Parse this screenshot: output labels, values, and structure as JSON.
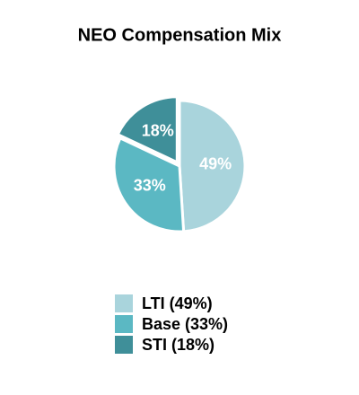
{
  "chart_data": {
    "type": "pie",
    "title": "NEO Compensation Mix",
    "categories": [
      "LTI (49%)",
      "Base (33%)",
      "STI (18%)"
    ],
    "values": [
      49,
      33,
      18
    ],
    "value_labels": [
      "49%",
      "33%",
      "18%"
    ],
    "colors": [
      "#a9d4dc",
      "#5bb8c3",
      "#3f8f99"
    ]
  }
}
